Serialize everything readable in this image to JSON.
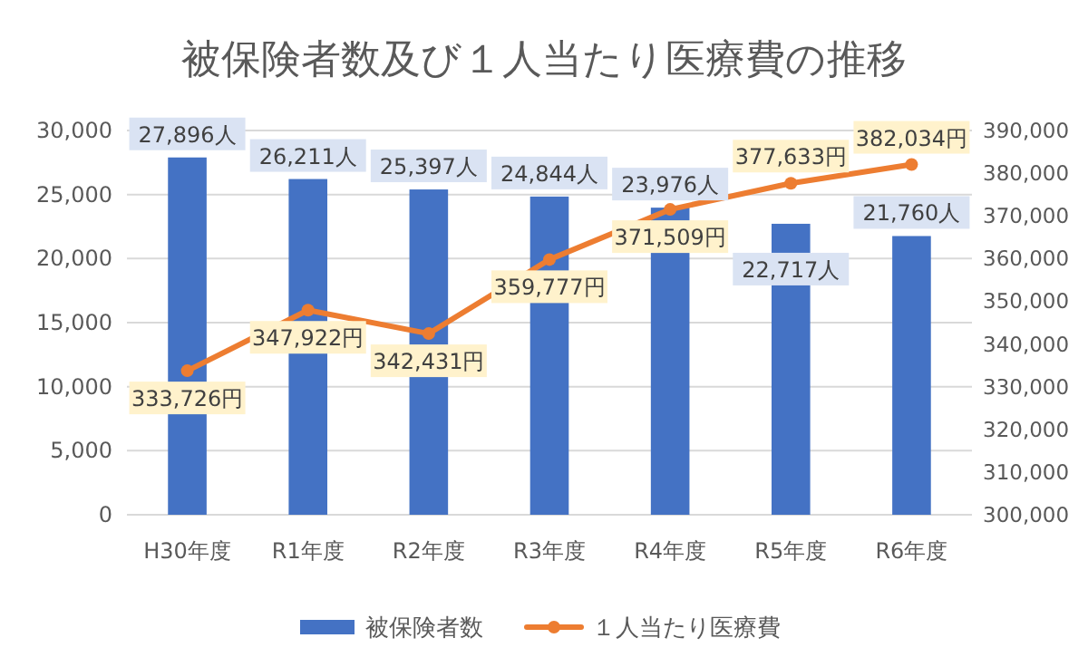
{
  "chart_data": {
    "type": "bar",
    "title": "被保険者数及び１人当たり医療費の推移",
    "categories": [
      "H30年度",
      "R1年度",
      "R2年度",
      "R3年度",
      "R4年度",
      "R5年度",
      "R6年度"
    ],
    "series": [
      {
        "name": "被保険者数",
        "color": "#4472c4",
        "values": [
          27896,
          26211,
          25397,
          24844,
          23976,
          22717,
          21760
        ],
        "value_labels": [
          "27,896人",
          "26,211人",
          "25,397人",
          "24,844人",
          "23,976人",
          "22,717人",
          "21,760人"
        ]
      },
      {
        "name": "１人当たり医療費",
        "type": "line",
        "axis": "y2",
        "color": "#ed7d31",
        "marker": "circle",
        "line_style": "solid",
        "values": [
          333726,
          347922,
          342431,
          359777,
          371509,
          377633,
          382034
        ],
        "value_labels": [
          "333,726円",
          "347,922円",
          "342,431円",
          "359,777円",
          "371,509円",
          "377,633円",
          "382,034円"
        ]
      }
    ],
    "ylim": [
      0,
      30000
    ],
    "yticks": [
      {
        "value": 0,
        "label": "0"
      },
      {
        "value": 5000,
        "label": "5,000"
      },
      {
        "value": 10000,
        "label": "10,000"
      },
      {
        "value": 15000,
        "label": "15,000"
      },
      {
        "value": 20000,
        "label": "20,000"
      },
      {
        "value": 25000,
        "label": "25,000"
      },
      {
        "value": 30000,
        "label": "30,000"
      }
    ],
    "y2lim": [
      300000,
      390000
    ],
    "y2ticks": [
      {
        "value": 300000,
        "label": "300,000"
      },
      {
        "value": 310000,
        "label": "310,000"
      },
      {
        "value": 320000,
        "label": "320,000"
      },
      {
        "value": 330000,
        "label": "330,000"
      },
      {
        "value": 340000,
        "label": "340,000"
      },
      {
        "value": 350000,
        "label": "350,000"
      },
      {
        "value": 360000,
        "label": "360,000"
      },
      {
        "value": 370000,
        "label": "370,000"
      },
      {
        "value": 380000,
        "label": "380,000"
      },
      {
        "value": 390000,
        "label": "390,000"
      }
    ],
    "grid": "y",
    "legend": "bottom"
  }
}
